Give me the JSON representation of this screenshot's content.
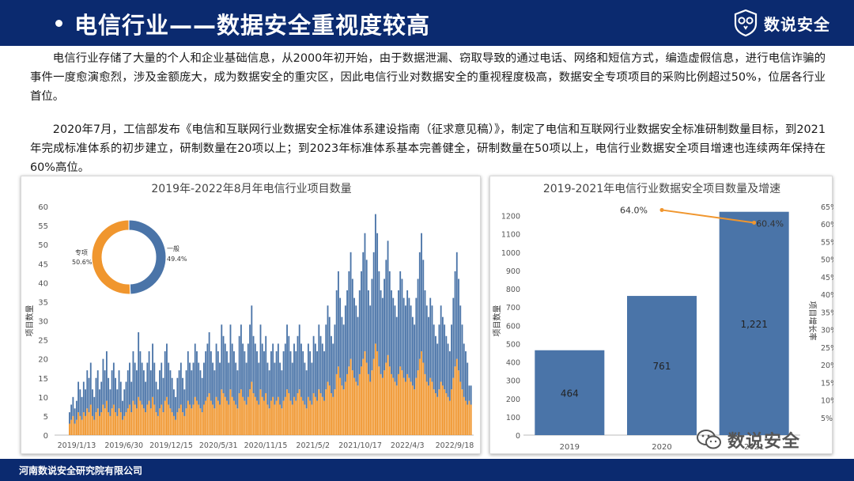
{
  "header": {
    "title": "电信行业——数据安全重视度较高",
    "brand": "数说安全"
  },
  "paragraphs": [
    "电信行业存储了大量的个人和企业基础信息，从2000年初开始，由于数据泄漏、窃取导致的通过电话、网络和短信方式，编造虚假信息，进行电信诈骗的事件一度愈演愈烈，涉及金额庞大，成为数据安全的重灾区，因此电信行业对数据安全的重视程度极高，数据安全专项项目的采购比例超过50%，位居各行业首位。",
    "2020年7月，工信部发布《电信和互联网行业数据安全标准体系建设指南（征求意见稿）》，制定了电信和互联网行业数据安全标准研制数量目标，到2021年完成标准体系的初步建立，研制数量在20项以上；到2023年标准体系基本完善健全，研制数量在50项以上，电信行业数据安全项目增速也连续两年保持在60%高位。"
  ],
  "footer": {
    "text": "河南数说安全研究院有限公司"
  },
  "watermark": {
    "text": "数说安全"
  },
  "colors": {
    "navy": "#0b2a6f",
    "blue": "#4a74a8",
    "orange": "#f0962e"
  },
  "chart_data": [
    {
      "type": "bar",
      "stacked": true,
      "title": "2019年-2022年8月年电信行业项目数量",
      "ylabel": "项目数量",
      "xlabel": "",
      "ylim": [
        0,
        60
      ],
      "yticks": [
        "0",
        "5",
        "10",
        "15",
        "20",
        "25",
        "30",
        "35",
        "40",
        "45",
        "50",
        "55",
        "60"
      ],
      "xtick_labels": [
        "2019/1/13",
        "2019/6/30",
        "2019/12/15",
        "2020/5/31",
        "2020/11/15",
        "2021/5/2",
        "2021/10/17",
        "2022/4/3",
        "2022/9/18"
      ],
      "series": [
        {
          "name": "专项",
          "color": "#f0962e",
          "values": [
            3,
            4,
            5,
            3,
            4,
            6,
            5,
            4,
            6,
            5,
            7,
            6,
            8,
            5,
            4,
            6,
            7,
            5,
            6,
            8,
            7,
            9,
            6,
            5,
            7,
            8,
            6,
            5,
            7,
            6,
            4,
            5,
            6,
            7,
            8,
            6,
            9,
            8,
            7,
            10,
            9,
            8,
            7,
            6,
            8,
            9,
            7,
            10,
            8,
            6,
            5,
            7,
            8,
            6,
            9,
            10,
            8,
            7,
            6,
            5,
            4,
            6,
            7,
            8,
            6,
            5,
            7,
            9,
            8,
            7,
            8,
            10,
            9,
            8,
            7,
            6,
            8,
            9,
            10,
            11,
            9,
            8,
            7,
            10,
            9,
            8,
            12,
            11,
            10,
            9,
            8,
            12,
            10,
            9,
            8,
            7,
            11,
            12,
            10,
            9,
            8,
            10,
            12,
            14,
            11,
            10,
            9,
            8,
            12,
            10,
            9,
            11,
            8,
            7,
            9,
            10,
            8,
            9,
            10,
            8,
            7,
            9,
            10,
            12,
            11,
            9,
            8,
            10,
            9,
            11,
            12,
            10,
            9,
            8,
            7,
            10,
            9,
            8,
            11,
            10,
            9,
            12,
            11,
            10,
            9,
            12,
            14,
            13,
            11,
            10,
            12,
            16,
            18,
            15,
            13,
            12,
            14,
            16,
            18,
            20,
            17,
            15,
            14,
            13,
            16,
            18,
            20,
            22,
            19,
            16,
            14,
            17,
            20,
            24,
            22,
            18,
            16,
            15,
            17,
            19,
            21,
            18,
            16,
            15,
            14,
            13,
            16,
            18,
            17,
            15,
            14,
            16,
            15,
            14,
            13,
            12,
            15,
            17,
            20,
            22,
            19,
            16,
            14,
            13,
            15,
            14,
            12,
            11,
            10,
            12,
            14,
            13,
            12,
            11,
            10,
            9,
            12,
            15,
            18,
            20,
            17,
            14,
            12,
            10,
            9,
            8,
            9,
            8
          ]
        },
        {
          "name": "一般",
          "color": "#4a74a8",
          "values": [
            3,
            4,
            5,
            4,
            5,
            8,
            7,
            6,
            8,
            7,
            10,
            9,
            11,
            7,
            6,
            9,
            10,
            7,
            8,
            12,
            10,
            13,
            9,
            7,
            10,
            11,
            9,
            7,
            10,
            8,
            5,
            7,
            8,
            10,
            11,
            8,
            13,
            11,
            10,
            17,
            13,
            11,
            10,
            8,
            11,
            13,
            10,
            14,
            11,
            8,
            7,
            10,
            11,
            9,
            13,
            14,
            11,
            10,
            9,
            7,
            6,
            9,
            10,
            11,
            9,
            7,
            10,
            13,
            11,
            10,
            11,
            14,
            13,
            11,
            10,
            9,
            11,
            13,
            14,
            16,
            13,
            11,
            10,
            14,
            13,
            11,
            17,
            15,
            14,
            13,
            11,
            17,
            14,
            13,
            11,
            10,
            15,
            17,
            14,
            13,
            11,
            14,
            17,
            20,
            15,
            14,
            13,
            11,
            17,
            14,
            13,
            15,
            11,
            10,
            13,
            14,
            11,
            13,
            14,
            11,
            10,
            13,
            14,
            17,
            15,
            13,
            11,
            14,
            13,
            15,
            17,
            14,
            13,
            11,
            10,
            14,
            13,
            11,
            15,
            14,
            13,
            17,
            15,
            14,
            13,
            17,
            20,
            18,
            15,
            14,
            17,
            22,
            25,
            21,
            18,
            17,
            20,
            22,
            25,
            28,
            24,
            21,
            20,
            18,
            22,
            25,
            28,
            31,
            27,
            22,
            20,
            24,
            28,
            34,
            31,
            25,
            22,
            21,
            24,
            27,
            30,
            25,
            22,
            21,
            20,
            18,
            22,
            25,
            24,
            21,
            20,
            22,
            21,
            20,
            18,
            17,
            21,
            24,
            28,
            31,
            27,
            22,
            20,
            18,
            21,
            20,
            17,
            15,
            14,
            17,
            20,
            18,
            17,
            15,
            14,
            13,
            17,
            21,
            25,
            28,
            24,
            20,
            17,
            14,
            13,
            11,
            4,
            5
          ]
        }
      ],
      "inset_pie": {
        "type": "pie",
        "slices": [
          {
            "label": "一般",
            "value": 49.4,
            "display": "49.4%",
            "color": "#4a74a8"
          },
          {
            "label": "专项",
            "value": 50.6,
            "display": "50.6%",
            "color": "#f0962e"
          }
        ]
      }
    },
    {
      "type": "bar",
      "title": "2019-2021年电信行业数据安全项目数量及增速",
      "categories": [
        "2019",
        "2020",
        "2021"
      ],
      "ylabel": "项目数量",
      "y2label": "项目增长率",
      "ylim": [
        0,
        1250
      ],
      "yticks": [
        "0",
        "100",
        "200",
        "300",
        "400",
        "500",
        "600",
        "700",
        "800",
        "900",
        "1000",
        "1100",
        "1200"
      ],
      "y2lim": [
        0,
        65
      ],
      "y2ticks": [
        "5%",
        "10%",
        "15%",
        "20%",
        "25%",
        "30%",
        "35%",
        "40%",
        "45%",
        "50%",
        "55%",
        "60%",
        "65%"
      ],
      "bars": {
        "color": "#4a74a8",
        "values": [
          464,
          761,
          1221
        ],
        "labels": [
          "464",
          "761",
          "1,221"
        ]
      },
      "growth_line": {
        "color": "#f0962e",
        "x": [
          "2020",
          "2021"
        ],
        "values": [
          64.0,
          60.4
        ],
        "labels": [
          "64.0%",
          "60.4%"
        ]
      }
    }
  ]
}
